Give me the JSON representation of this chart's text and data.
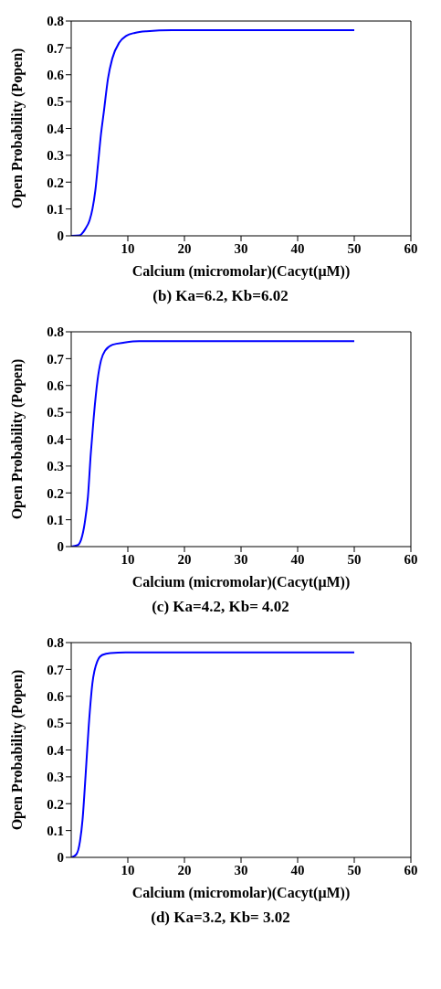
{
  "chart_data": [
    {
      "type": "line",
      "xlabel": "Calcium (micromolar)(Cacyt(μM))",
      "ylabel": "Open Probability (Popen)",
      "annotations": [
        "(b) Ka=6.2, Kb=6.02"
      ],
      "xlim": [
        0,
        60
      ],
      "xticks": [
        10,
        20,
        30,
        40,
        50,
        60
      ],
      "ylim": [
        0,
        0.8
      ],
      "yticks": [
        0,
        0.1,
        0.2,
        0.3,
        0.4,
        0.5,
        0.6,
        0.7,
        0.8
      ],
      "color": "#0000ff",
      "x": [
        0,
        1.5,
        2.5,
        3.25,
        3.75,
        4.25,
        4.75,
        5.25,
        5.75,
        6.5,
        7.25,
        8.5,
        9.75,
        11.25,
        13.3,
        17.8,
        50
      ],
      "values": [
        0,
        0.002,
        0.026,
        0.058,
        0.1,
        0.167,
        0.27,
        0.377,
        0.46,
        0.586,
        0.66,
        0.72,
        0.745,
        0.756,
        0.762,
        0.766,
        0.766
      ]
    },
    {
      "type": "line",
      "xlabel": "Calcium (micromolar)(Cacyt(μM))",
      "ylabel": "Open Probability (Popen)",
      "annotations": [
        "(c) Ka=4.2,  Kb= 4.02"
      ],
      "xlim": [
        0,
        60
      ],
      "xticks": [
        10,
        20,
        30,
        40,
        50,
        60
      ],
      "ylim": [
        0,
        0.8
      ],
      "yticks": [
        0,
        0.1,
        0.2,
        0.3,
        0.4,
        0.5,
        0.6,
        0.7,
        0.8
      ],
      "color": "#0000ff",
      "x": [
        0,
        1.1,
        1.75,
        2.4,
        2.95,
        3.45,
        3.97,
        4.65,
        5.27,
        6.0,
        7.3,
        9.4,
        12,
        50
      ],
      "values": [
        0,
        0.005,
        0.026,
        0.09,
        0.185,
        0.344,
        0.48,
        0.62,
        0.694,
        0.73,
        0.752,
        0.76,
        0.765,
        0.765
      ]
    },
    {
      "type": "line",
      "xlabel": "Calcium (micromolar)(Cacyt(μM))",
      "ylabel": "Open Probability (Popen)",
      "annotations": [
        "(d) Ka=3.2,  Kb= 3.02"
      ],
      "xlim": [
        0,
        60
      ],
      "xticks": [
        10,
        20,
        30,
        40,
        50,
        60
      ],
      "ylim": [
        0,
        0.8
      ],
      "yticks": [
        0,
        0.1,
        0.2,
        0.3,
        0.4,
        0.5,
        0.6,
        0.7,
        0.8
      ],
      "color": "#0000ff",
      "x": [
        0,
        0.9,
        1.55,
        2.0,
        2.54,
        3.08,
        3.73,
        4.6,
        5.5,
        6.9,
        9.6,
        50
      ],
      "values": [
        0,
        0.011,
        0.06,
        0.14,
        0.306,
        0.485,
        0.646,
        0.73,
        0.754,
        0.761,
        0.763,
        0.763
      ]
    }
  ]
}
